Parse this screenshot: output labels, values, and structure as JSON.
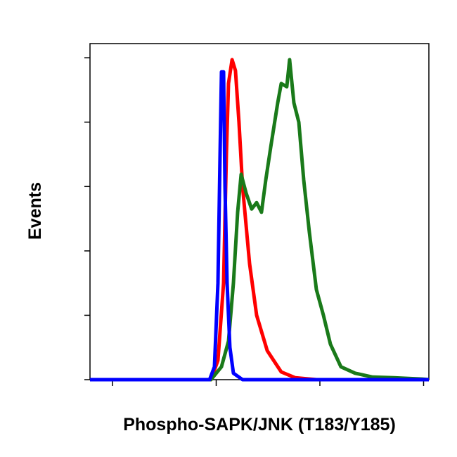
{
  "chart_data": {
    "type": "line",
    "xlabel": "Phospho-SAPK/JNK (T183/Y185)",
    "ylabel": "Events",
    "xlim": [
      -0.217,
      3.051
    ],
    "xticks": [
      0,
      1,
      2,
      3
    ],
    "ylim": [
      0,
      5.22
    ],
    "yticks": [
      0,
      1,
      2,
      3,
      4,
      5
    ],
    "series": [
      {
        "color": "#ff0000",
        "x": [
          -0.217,
          0.949,
          1.017,
          1.071,
          1.098,
          1.119,
          1.153,
          1.186,
          1.22,
          1.254,
          1.322,
          1.39,
          1.492,
          1.627,
          1.763,
          1.966,
          3.051
        ],
        "values": [
          0,
          0,
          0.3,
          1.5,
          3.5,
          4.6,
          4.97,
          4.8,
          4.0,
          3.0,
          1.8,
          1.0,
          0.45,
          0.12,
          0.03,
          0,
          0
        ]
      },
      {
        "color": "#1a7a1a",
        "x": [
          -0.217,
          0.949,
          1.051,
          1.119,
          1.166,
          1.207,
          1.241,
          1.288,
          1.342,
          1.39,
          1.437,
          1.478,
          1.525,
          1.593,
          1.627,
          1.681,
          1.708,
          1.749,
          1.797,
          1.844,
          1.898,
          1.966,
          2.034,
          2.102,
          2.203,
          2.339,
          2.508,
          2.712,
          2.983,
          3.051
        ],
        "values": [
          0,
          0,
          0.2,
          0.6,
          1.5,
          2.6,
          3.19,
          2.9,
          2.65,
          2.75,
          2.6,
          3.1,
          3.6,
          4.3,
          4.6,
          4.55,
          4.97,
          4.3,
          4.0,
          3.1,
          2.3,
          1.4,
          1.0,
          0.55,
          0.2,
          0.1,
          0.04,
          0.03,
          0.01,
          0
        ]
      },
      {
        "color": "#0000ff",
        "x": [
          -0.217,
          0.936,
          0.983,
          1.017,
          1.037,
          1.051,
          1.071,
          1.085,
          1.105,
          1.132,
          1.166,
          1.254,
          3.051
        ],
        "values": [
          0,
          0,
          0.2,
          1.5,
          3.5,
          4.78,
          4.78,
          3.0,
          1.5,
          0.5,
          0.1,
          0,
          0
        ]
      }
    ]
  }
}
